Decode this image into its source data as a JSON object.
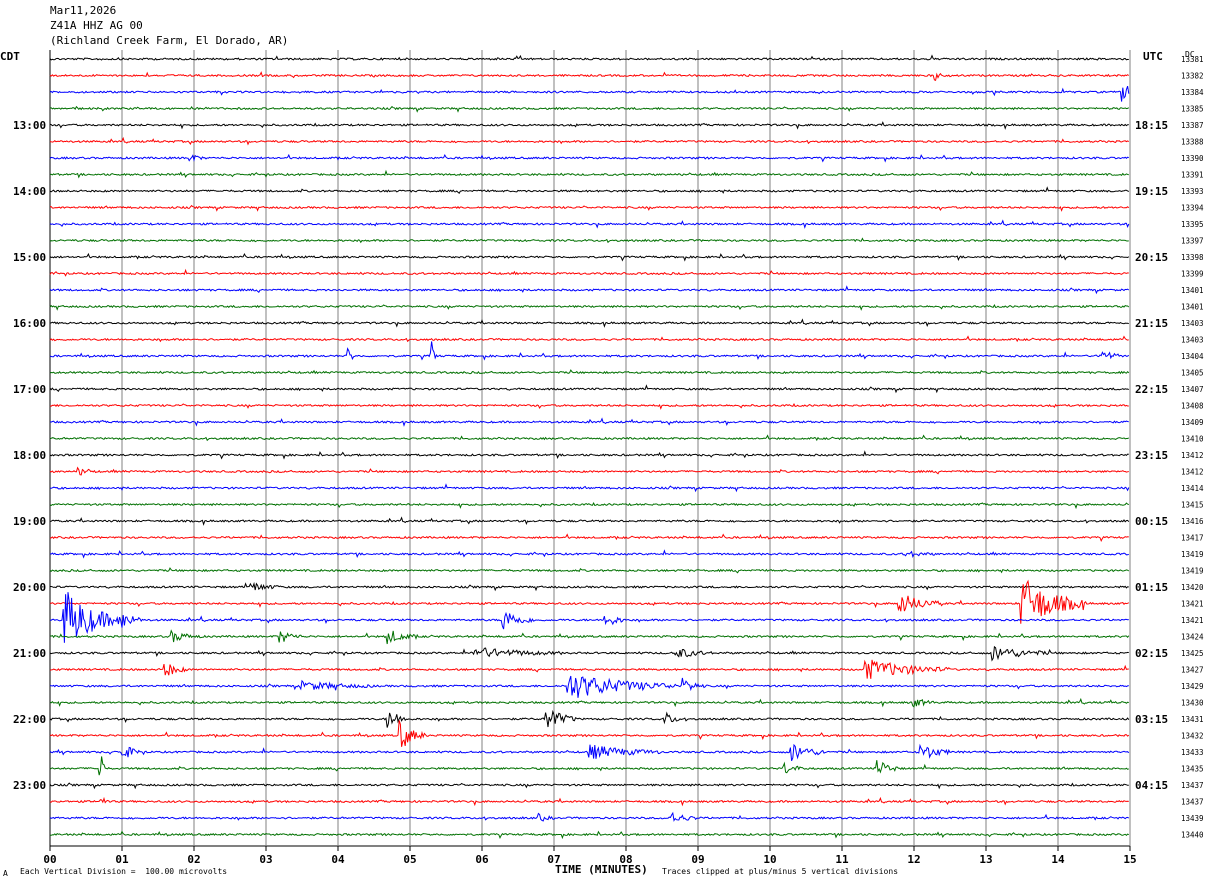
{
  "header": {
    "date": "Mar11,2026",
    "station": "Z41A HHZ AG 00",
    "location": "(Richland Creek Farm, El Dorado, AR)"
  },
  "left_tz": "CDT",
  "right_tz": "UTC",
  "dc_label": "DC",
  "footer": {
    "scale": "Each Vertical Division =  100.00 microvolts",
    "xlabel": "TIME (MINUTES)",
    "clip": "Traces clipped at plus/minus 5 vertical divisions",
    "corner_mark": "A"
  },
  "chart_data": {
    "type": "line",
    "title": "",
    "xlabel": "TIME (MINUTES)",
    "x_ticks": [
      "00",
      "01",
      "02",
      "03",
      "04",
      "05",
      "06",
      "07",
      "08",
      "09",
      "10",
      "11",
      "12",
      "13",
      "14",
      "15"
    ],
    "xlim": [
      0,
      15
    ],
    "grid": true,
    "trace_colors": [
      "#000000",
      "#ff0000",
      "#0000ff",
      "#007000"
    ],
    "left_hour_labels": [
      "13:00",
      "14:00",
      "15:00",
      "16:00",
      "17:00",
      "18:00",
      "19:00",
      "20:00",
      "21:00",
      "22:00",
      "23:00"
    ],
    "right_hour_labels": [
      "18:15",
      "19:15",
      "20:15",
      "21:15",
      "22:15",
      "23:15",
      "00:15",
      "01:15",
      "02:15",
      "03:15",
      "04:15"
    ],
    "dc_values": [
      "13381",
      "13382",
      "13384",
      "13385",
      "13387",
      "13388",
      "13390",
      "13391",
      "13393",
      "13394",
      "13395",
      "13397",
      "13398",
      "13399",
      "13401",
      "13401",
      "13403",
      "13403",
      "13404",
      "13405",
      "13407",
      "13408",
      "13409",
      "13410",
      "13412",
      "13412",
      "13414",
      "13415",
      "13416",
      "13417",
      "13419",
      "13419",
      "13420",
      "13421",
      "13421",
      "13424",
      "13425",
      "13427",
      "13429",
      "13430",
      "13431",
      "13432",
      "13433",
      "13435",
      "13437",
      "13437",
      "13439",
      "13440"
    ],
    "events": [
      {
        "trace": 1,
        "minute": 12.3,
        "amp": 0.5,
        "dur": 0.1
      },
      {
        "trace": 2,
        "minute": 14.9,
        "amp": 1.0,
        "dur": 0.25
      },
      {
        "trace": 6,
        "minute": 1.95,
        "amp": 0.4,
        "dur": 0.2
      },
      {
        "trace": 18,
        "minute": 4.15,
        "amp": 1.2,
        "dur": 0.08
      },
      {
        "trace": 18,
        "minute": 5.3,
        "amp": 1.6,
        "dur": 0.08
      },
      {
        "trace": 18,
        "minute": 14.6,
        "amp": 0.9,
        "dur": 0.25
      },
      {
        "trace": 25,
        "minute": 0.4,
        "amp": 0.4,
        "dur": 0.25
      },
      {
        "trace": 30,
        "minute": 11.9,
        "amp": 0.3,
        "dur": 0.4
      },
      {
        "trace": 32,
        "minute": 2.8,
        "amp": 0.5,
        "dur": 0.4
      },
      {
        "trace": 33,
        "minute": 11.8,
        "amp": 1.2,
        "dur": 0.6
      },
      {
        "trace": 33,
        "minute": 13.5,
        "amp": 3.0,
        "dur": 0.9
      },
      {
        "trace": 34,
        "minute": 0.2,
        "amp": 3.5,
        "dur": 0.8
      },
      {
        "trace": 34,
        "minute": 1.0,
        "amp": 1.0,
        "dur": 0.3
      },
      {
        "trace": 34,
        "minute": 6.3,
        "amp": 1.3,
        "dur": 0.4
      },
      {
        "trace": 34,
        "minute": 7.7,
        "amp": 0.9,
        "dur": 0.3
      },
      {
        "trace": 35,
        "minute": 1.7,
        "amp": 0.6,
        "dur": 0.4
      },
      {
        "trace": 35,
        "minute": 3.2,
        "amp": 0.7,
        "dur": 0.3
      },
      {
        "trace": 35,
        "minute": 4.7,
        "amp": 0.8,
        "dur": 0.4
      },
      {
        "trace": 36,
        "minute": 5.9,
        "amp": 0.6,
        "dur": 1.2
      },
      {
        "trace": 36,
        "minute": 8.7,
        "amp": 0.6,
        "dur": 0.5
      },
      {
        "trace": 36,
        "minute": 13.1,
        "amp": 0.8,
        "dur": 0.8
      },
      {
        "trace": 37,
        "minute": 1.6,
        "amp": 0.9,
        "dur": 0.3
      },
      {
        "trace": 37,
        "minute": 11.3,
        "amp": 1.2,
        "dur": 1.2
      },
      {
        "trace": 38,
        "minute": 7.2,
        "amp": 1.5,
        "dur": 1.5
      },
      {
        "trace": 38,
        "minute": 8.8,
        "amp": 0.8,
        "dur": 0.3
      },
      {
        "trace": 38,
        "minute": 3.5,
        "amp": 0.5,
        "dur": 1.0
      },
      {
        "trace": 39,
        "minute": 12.0,
        "amp": 0.5,
        "dur": 0.3
      },
      {
        "trace": 40,
        "minute": 4.7,
        "amp": 1.2,
        "dur": 0.3
      },
      {
        "trace": 40,
        "minute": 6.9,
        "amp": 1.4,
        "dur": 0.4
      },
      {
        "trace": 40,
        "minute": 8.55,
        "amp": 0.8,
        "dur": 0.2
      },
      {
        "trace": 41,
        "minute": 4.85,
        "amp": 1.8,
        "dur": 0.35
      },
      {
        "trace": 42,
        "minute": 1.0,
        "amp": 0.9,
        "dur": 0.3
      },
      {
        "trace": 42,
        "minute": 7.5,
        "amp": 0.8,
        "dur": 1.0
      },
      {
        "trace": 42,
        "minute": 10.3,
        "amp": 1.0,
        "dur": 0.5
      },
      {
        "trace": 42,
        "minute": 12.1,
        "amp": 1.0,
        "dur": 0.4
      },
      {
        "trace": 43,
        "minute": 0.7,
        "amp": 3.0,
        "dur": 0.06
      },
      {
        "trace": 43,
        "minute": 11.5,
        "amp": 1.0,
        "dur": 0.3
      },
      {
        "trace": 43,
        "minute": 10.2,
        "amp": 0.6,
        "dur": 0.3
      },
      {
        "trace": 45,
        "minute": 0.7,
        "amp": 0.5,
        "dur": 0.15
      },
      {
        "trace": 46,
        "minute": 8.6,
        "amp": 0.7,
        "dur": 0.4
      },
      {
        "trace": 46,
        "minute": 6.8,
        "amp": 0.4,
        "dur": 0.2
      }
    ]
  }
}
